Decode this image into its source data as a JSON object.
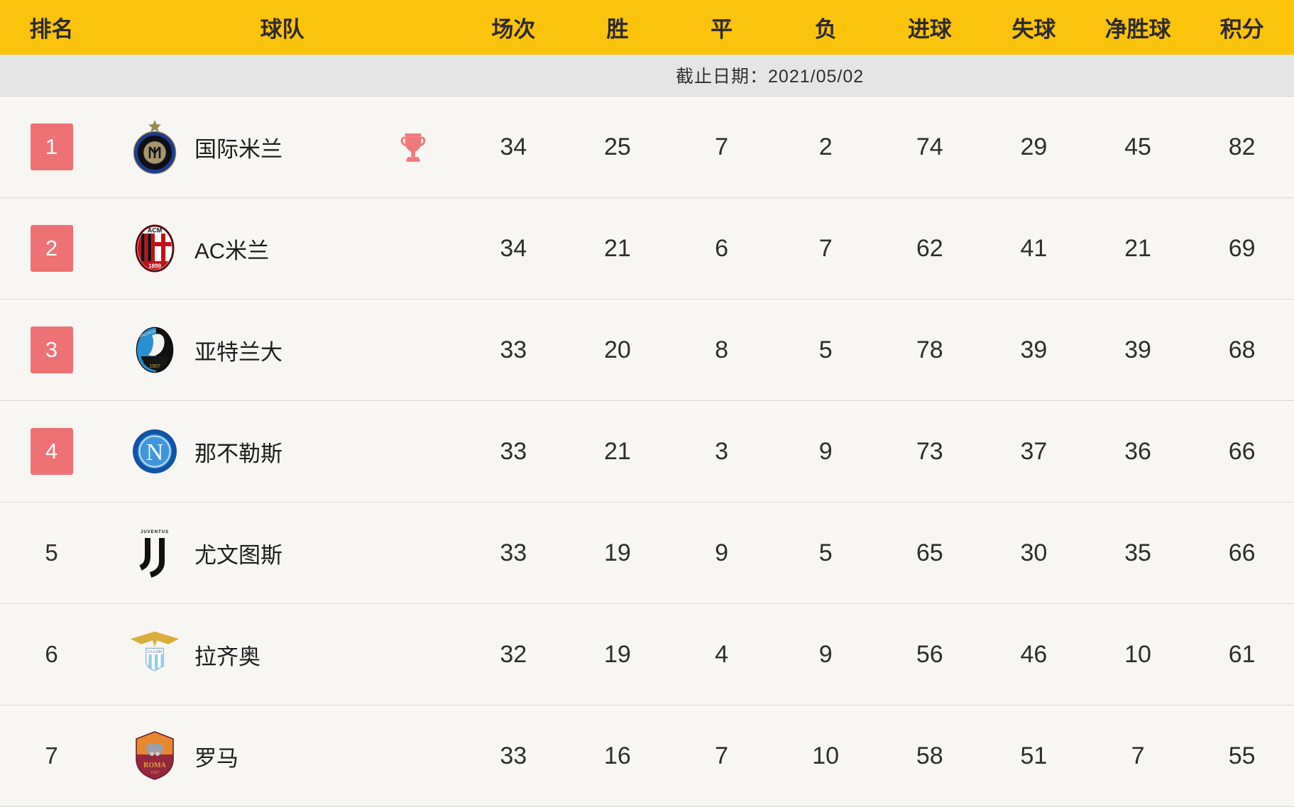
{
  "page": {
    "background": "#f8f6f3"
  },
  "header": {
    "background": "#fbc30b",
    "labels": [
      "排名",
      "球队",
      "场次",
      "胜",
      "平",
      "负",
      "进球",
      "失球",
      "净胜球",
      "积分"
    ]
  },
  "date_bar": {
    "background": "#e5e5e5",
    "label": "截止日期：",
    "value": "2021/05/02"
  },
  "colors": {
    "header_yellow": "#fbc30b",
    "rank_badge_red": "#ee7173",
    "trophy_pink": "#f0797b",
    "row_background": "#f8f6f3",
    "divider_gray": "#ddd9d5",
    "date_bar_gray": "#e5e5e5"
  },
  "icons": {
    "champion": "trophy-icon"
  },
  "table": {
    "rows": [
      {
        "rank": "1",
        "highlighted": true,
        "team": "国际米兰",
        "logo": "inter-milan-crest-icon",
        "champion": true,
        "played": "34",
        "won": "25",
        "drawn": "7",
        "lost": "2",
        "goals_for": "74",
        "goals_against": "29",
        "goal_diff": "45",
        "points": "82"
      },
      {
        "rank": "2",
        "highlighted": true,
        "team": "AC米兰",
        "logo": "ac-milan-crest-icon",
        "champion": false,
        "played": "34",
        "won": "21",
        "drawn": "6",
        "lost": "7",
        "goals_for": "62",
        "goals_against": "41",
        "goal_diff": "21",
        "points": "69"
      },
      {
        "rank": "3",
        "highlighted": true,
        "team": "亚特兰大",
        "logo": "atalanta-crest-icon",
        "champion": false,
        "played": "33",
        "won": "20",
        "drawn": "8",
        "lost": "5",
        "goals_for": "78",
        "goals_against": "39",
        "goal_diff": "39",
        "points": "68"
      },
      {
        "rank": "4",
        "highlighted": true,
        "team": "那不勒斯",
        "logo": "napoli-crest-icon",
        "champion": false,
        "played": "33",
        "won": "21",
        "drawn": "3",
        "lost": "9",
        "goals_for": "73",
        "goals_against": "37",
        "goal_diff": "36",
        "points": "66"
      },
      {
        "rank": "5",
        "highlighted": false,
        "team": "尤文图斯",
        "logo": "juventus-crest-icon",
        "champion": false,
        "played": "33",
        "won": "19",
        "drawn": "9",
        "lost": "5",
        "goals_for": "65",
        "goals_against": "30",
        "goal_diff": "35",
        "points": "66"
      },
      {
        "rank": "6",
        "highlighted": false,
        "team": "拉齐奥",
        "logo": "lazio-crest-icon",
        "champion": false,
        "played": "32",
        "won": "19",
        "drawn": "4",
        "lost": "9",
        "goals_for": "56",
        "goals_against": "46",
        "goal_diff": "10",
        "points": "61"
      },
      {
        "rank": "7",
        "highlighted": false,
        "team": "罗马",
        "logo": "roma-crest-icon",
        "champion": false,
        "played": "33",
        "won": "16",
        "drawn": "7",
        "lost": "10",
        "goals_for": "58",
        "goals_against": "51",
        "goal_diff": "7",
        "points": "55"
      }
    ]
  },
  "chart_data": {
    "type": "table",
    "columns": [
      "排名",
      "球队",
      "场次",
      "胜",
      "平",
      "负",
      "进球",
      "失球",
      "净胜球",
      "积分"
    ],
    "rows": [
      [
        1,
        "国际米兰",
        34,
        25,
        7,
        2,
        74,
        29,
        45,
        82
      ],
      [
        2,
        "AC米兰",
        34,
        21,
        6,
        7,
        62,
        41,
        21,
        69
      ],
      [
        3,
        "亚特兰大",
        33,
        20,
        8,
        5,
        78,
        39,
        39,
        68
      ],
      [
        4,
        "那不勒斯",
        33,
        21,
        3,
        9,
        73,
        37,
        36,
        66
      ],
      [
        5,
        "尤文图斯",
        33,
        19,
        9,
        5,
        65,
        30,
        35,
        66
      ],
      [
        6,
        "拉齐奥",
        32,
        19,
        4,
        9,
        56,
        46,
        10,
        61
      ],
      [
        7,
        "罗马",
        33,
        16,
        7,
        10,
        58,
        51,
        7,
        55
      ]
    ],
    "footnote": "截止日期：2021/05/02",
    "notes": "rows 1-4 have red rank badges; row 1 has champion trophy mark"
  }
}
